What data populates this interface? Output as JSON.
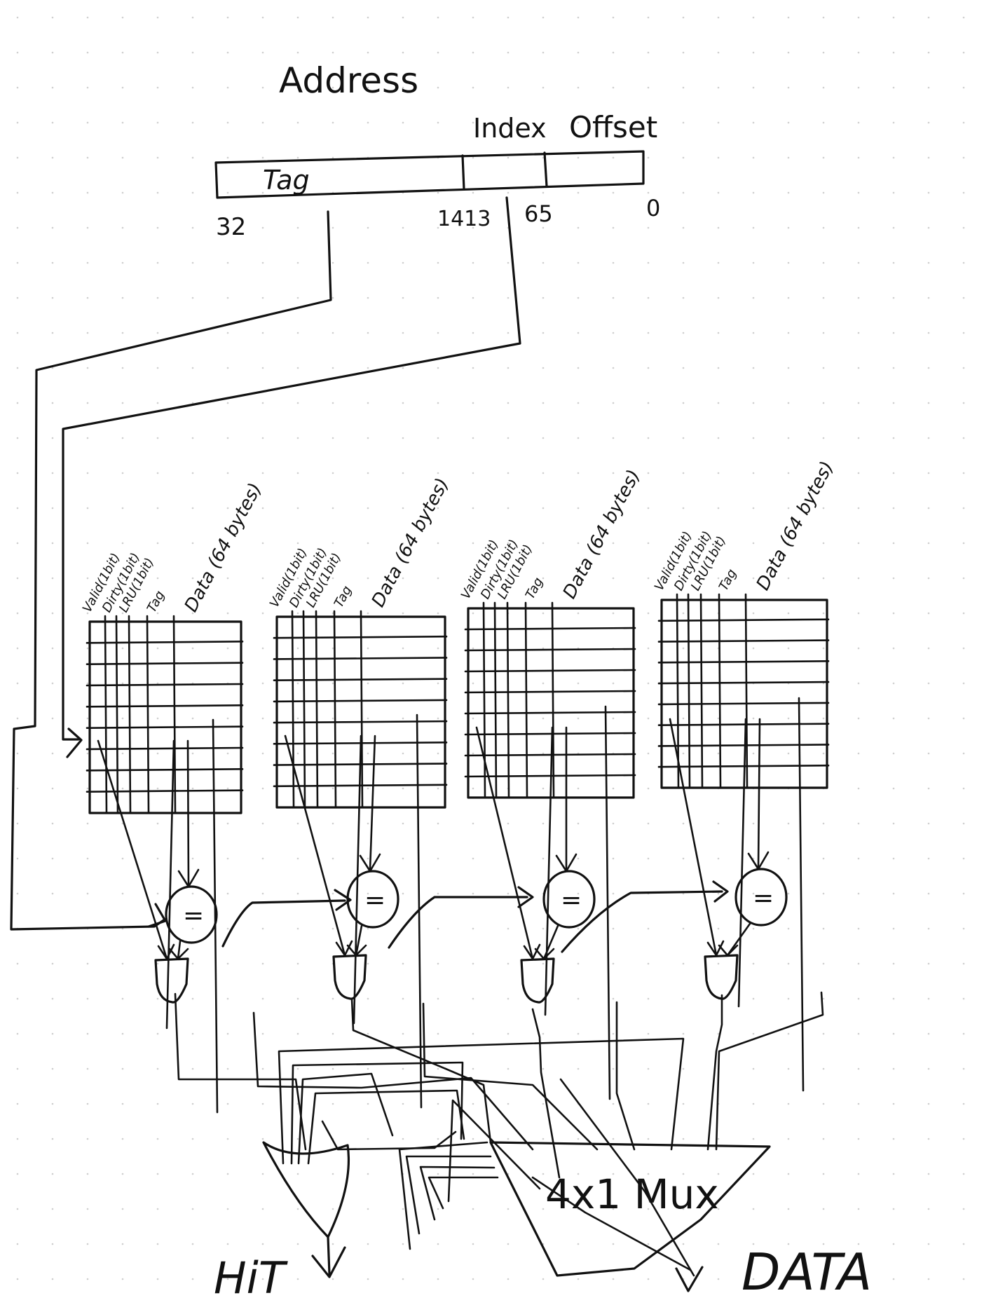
{
  "address": {
    "title": "Address",
    "index_label": "Index",
    "offset_label": "Offset",
    "tag_label": "Tag",
    "bit_labels": [
      "32",
      "1413",
      "65",
      "0"
    ]
  },
  "ways": [
    {
      "columns": [
        "Valid(1bit)",
        "Dirty(1bit)",
        "LRU(1bit)",
        "Tag",
        "Data (64 bytes)"
      ]
    },
    {
      "columns": [
        "Valid(1bit)",
        "Dirty(1bit)",
        "LRU(1bit)",
        "Tag",
        "Data (64 bytes)"
      ]
    },
    {
      "columns": [
        "Valid(1bit)",
        "Dirty(1bit)",
        "LRU(1bit)",
        "Tag",
        "Data (64 bytes)"
      ]
    },
    {
      "columns": [
        "Valid(1bit)",
        "Dirty(1bit)",
        "LRU(1bit)",
        "Tag",
        "Data (64 bytes)"
      ]
    }
  ],
  "comparator_symbol": "=",
  "mux_label": "4x1 Mux",
  "outputs": {
    "hit": "HiT",
    "data": "DATA"
  }
}
